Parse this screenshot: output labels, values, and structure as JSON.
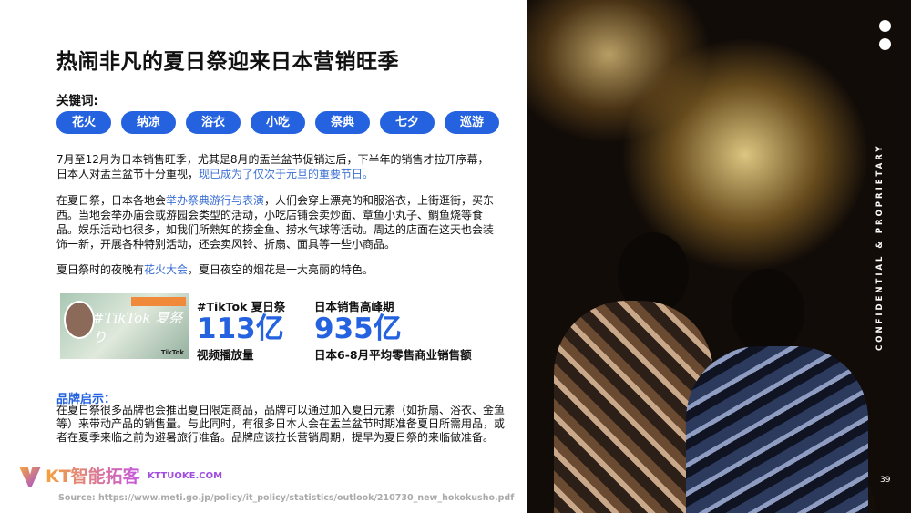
{
  "title": "热闹非凡的夏日祭迎来日本营销旺季",
  "keywords": {
    "label": "关键词:",
    "tags": [
      "花火",
      "纳凉",
      "浴衣",
      "小吃",
      "祭典",
      "七夕",
      "巡游"
    ]
  },
  "paragraphs": {
    "p1_a": "7月至12月为日本销售旺季，尤其是8月的盂兰盆节促销过后，下半年的销售才拉开序幕，日本人对盂兰盆节十分重视，",
    "p1_hl": "现已成为了仅次于元旦的重要节日。",
    "p2_a": "在夏日祭，日本各地会",
    "p2_hl": "举办祭典游行与表演",
    "p2_b": "，人们会穿上漂亮的和服浴衣，上街逛街，买东西。当地会举办庙会或游园会类型的活动，小吃店铺会卖炒面、章鱼小丸子、鲷鱼烧等食品。娱乐活动也很多，如我们所熟知的捞金鱼、捞水气球等活动。周边的店面在这天也会装饰一新，开展各种特别活动，还会卖风铃、折扇、面具等一些小商品。",
    "p3_a": "夏日祭时的夜晚有",
    "p3_hl": "花火大会",
    "p3_b": "，夏日夜空的烟花是一大亮丽的特色。"
  },
  "thumbnail": {
    "script": "#TikTok 夏祭り",
    "logo": "TikTok"
  },
  "stats": [
    {
      "heading": "#TikTok 夏日祭",
      "value": "113亿",
      "sub": "视频播放量"
    },
    {
      "heading": "日本销售高峰期",
      "value": "935亿",
      "sub": "日本6-8月平均零售商业销售额"
    }
  ],
  "brand": {
    "heading": "品牌启示：",
    "text": "在夏日祭很多品牌也会推出夏日限定商品，品牌可以通过加入夏日元素（如折扇、浴衣、金鱼等）来带动产品的销售量。与此同时，有很多日本人会在盂兰盆节时期准备夏日所需用品，或者在夏季来临之前为避暑旅行准备。品牌应该拉长营销周期，提早为夏日祭的来临做准备。"
  },
  "logo": {
    "name": "KT智能拓客",
    "url": "KTTUOKE.COM"
  },
  "source": "Source: https://www.meti.go.jp/policy/it_policy/statistics/outlook/210730_new_hokokusho.pdf",
  "sidebar": {
    "confidential": "CONFIDENTIAL & PROPRIETARY",
    "page_number": "39"
  },
  "colors": {
    "accent": "#2462e0",
    "highlight": "#3b6fd4"
  }
}
